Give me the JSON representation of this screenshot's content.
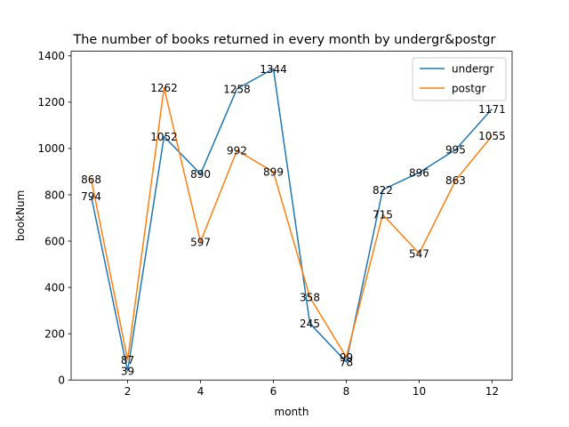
{
  "chart_data": {
    "type": "line",
    "title": "The number of books returned in every month by undergr&postgr",
    "xlabel": "month",
    "ylabel": "bookNum",
    "x": [
      1,
      2,
      3,
      4,
      5,
      6,
      7,
      8,
      9,
      10,
      11,
      12
    ],
    "xlim": [
      0.45,
      12.55
    ],
    "ylim": [
      0,
      1420
    ],
    "xticks": [
      2,
      4,
      6,
      8,
      10,
      12
    ],
    "yticks": [
      0,
      200,
      400,
      600,
      800,
      1000,
      1200,
      1400
    ],
    "grid": false,
    "legend_position": "upper right",
    "series": [
      {
        "name": "undergr",
        "color": "#1f77b4",
        "values": [
          794,
          39,
          1052,
          890,
          1258,
          1344,
          245,
          78,
          822,
          896,
          995,
          1171
        ]
      },
      {
        "name": "postgr",
        "color": "#ff7f0e",
        "values": [
          868,
          87,
          1262,
          597,
          992,
          899,
          358,
          99,
          715,
          547,
          863,
          1055
        ]
      }
    ]
  }
}
